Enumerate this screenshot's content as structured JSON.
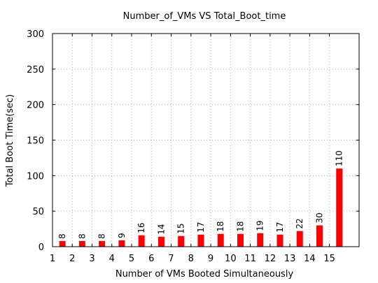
{
  "chart_data": {
    "type": "bar",
    "title": "Number_of_VMs VS Total_Boot_time",
    "xlabel": "Number of VMs Booted Simultaneously",
    "ylabel": "Total Boot Time(sec)",
    "categories": [
      "1",
      "2",
      "3",
      "4",
      "5",
      "6",
      "7",
      "8",
      "9",
      "10",
      "11",
      "12",
      "13",
      "14",
      "15"
    ],
    "values": [
      8,
      8,
      8,
      9,
      16,
      14,
      15,
      17,
      18,
      18,
      19,
      17,
      22,
      30,
      110
    ],
    "data_labels": [
      "8",
      "8",
      "8",
      "9",
      "16",
      "14",
      "15",
      "17",
      "18",
      "18",
      "19",
      "17",
      "22",
      "30",
      "110"
    ],
    "yticks": [
      "0",
      "50",
      "100",
      "150",
      "200",
      "250",
      "300"
    ],
    "ylim": [
      0,
      300
    ],
    "grid": true,
    "bar_color": "#ff0000"
  }
}
